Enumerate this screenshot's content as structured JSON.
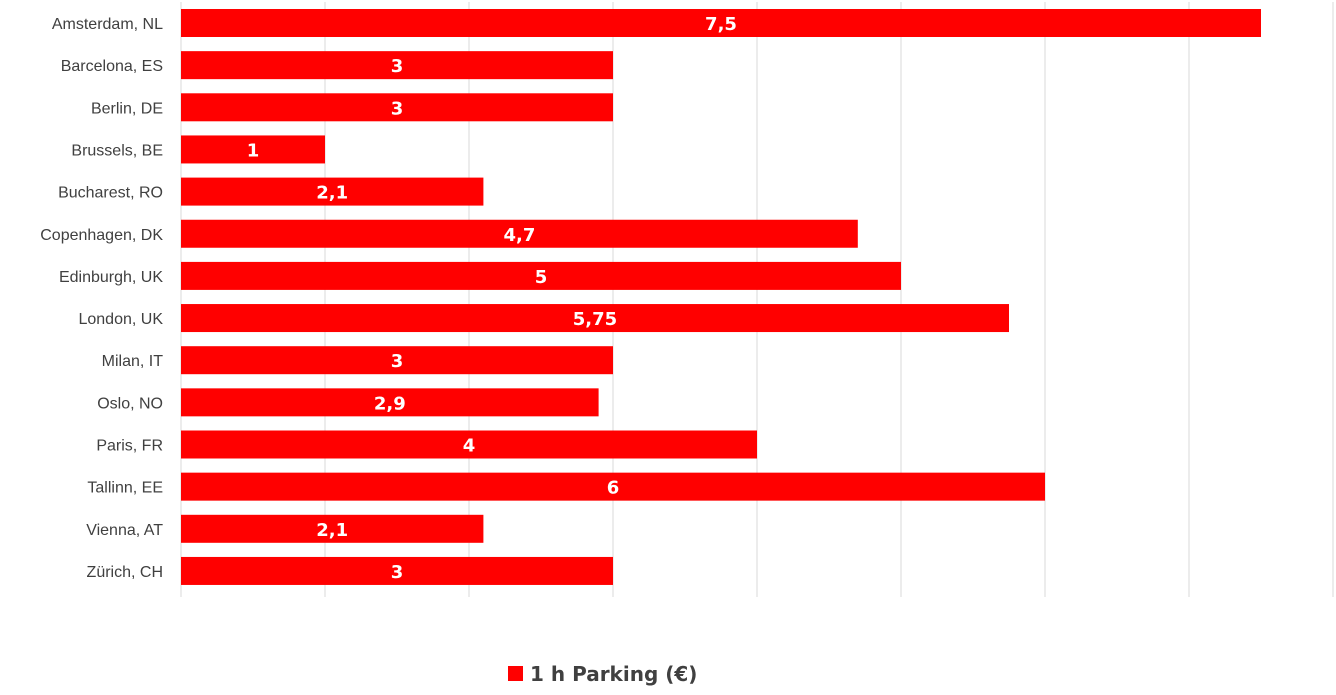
{
  "chart_data": {
    "type": "bar",
    "orientation": "horizontal",
    "categories": [
      "Amsterdam, NL",
      "Barcelona, ES",
      "Berlin, DE",
      "Brussels, BE",
      "Bucharest, RO",
      "Copenhagen, DK",
      "Edinburgh, UK",
      "London, UK",
      "Milan, IT",
      "Oslo, NO",
      "Paris, FR",
      "Tallinn, EE",
      "Vienna, AT",
      "Zürich, CH"
    ],
    "series": [
      {
        "name": "1 h Parking (€)",
        "color": "#ff0000",
        "values": [
          7.5,
          3,
          3,
          1,
          2.1,
          4.7,
          5,
          5.75,
          3,
          2.9,
          4,
          6,
          2.1,
          3
        ],
        "value_labels": [
          "7,5",
          "3",
          "3",
          "1",
          "2,1",
          "4,7",
          "5",
          "5,75",
          "3",
          "2,9",
          "4",
          "6",
          "2,1",
          "3"
        ]
      }
    ],
    "title": "",
    "xlabel": "",
    "ylabel": "",
    "xlim": [
      0,
      8
    ],
    "grid": true,
    "legend_position": "bottom"
  }
}
